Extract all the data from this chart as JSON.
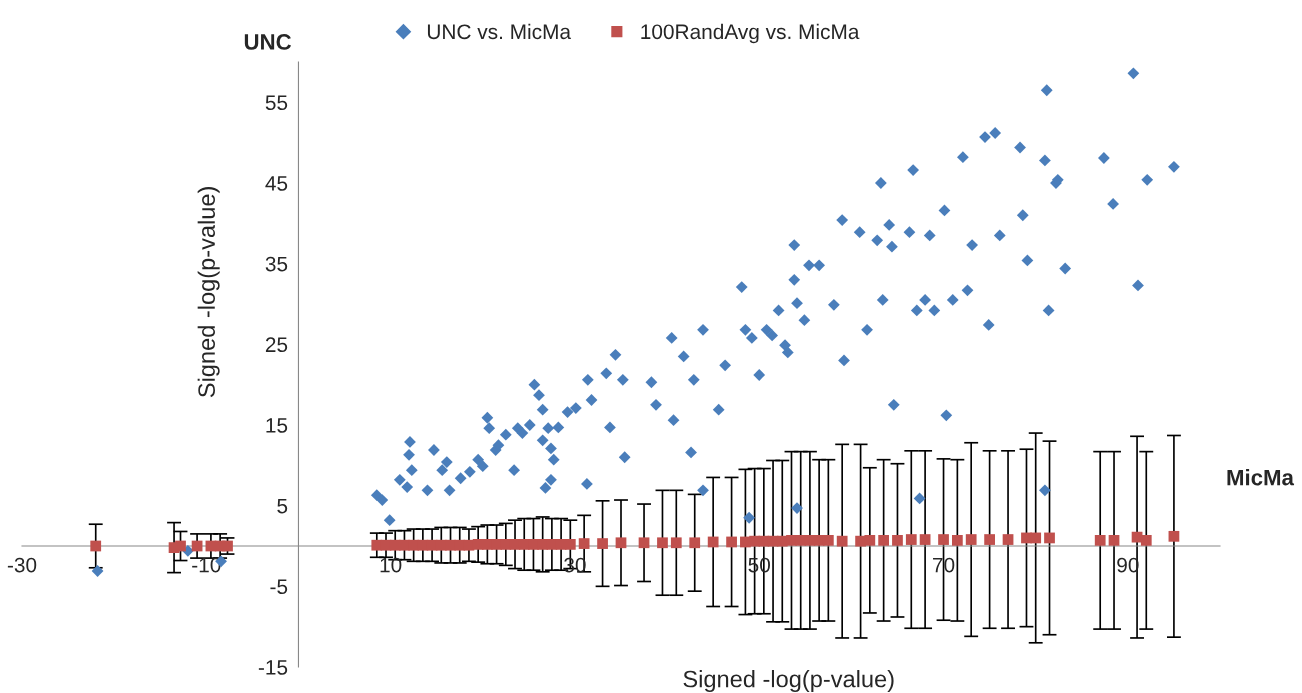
{
  "chart_data": {
    "type": "scatter",
    "xlabel": "Signed -log(p-value)",
    "ylabel": "Signed -log(p-value)",
    "annotations": [
      "UNC",
      "MicMa"
    ],
    "xlim": [
      -30,
      100
    ],
    "ylim": [
      -15,
      60
    ],
    "xticks": [
      -30,
      -10,
      10,
      30,
      50,
      70,
      90
    ],
    "yticks": [
      -15,
      -5,
      5,
      15,
      25,
      35,
      45,
      55
    ],
    "grid": false,
    "legend": "top",
    "series": [
      {
        "name": "UNC vs. MicMa",
        "marker": "diamond",
        "color": "#4a7ebb",
        "x": [
          -21.8,
          -12,
          -8.4,
          8.5,
          9.1,
          9.9,
          11.0,
          11.8,
          12.0,
          12.1,
          12.3,
          14.0,
          14.7,
          15.6,
          16.1,
          16.4,
          17.6,
          18.6,
          19.5,
          20.0,
          20.5,
          20.7,
          21.4,
          21.7,
          22.5,
          23.4,
          23.8,
          24.3,
          25.1,
          25.6,
          26.1,
          26.5,
          26.5,
          26.8,
          27.1,
          27.4,
          27.4,
          27.7,
          28.2,
          29.2,
          30.1,
          31.3,
          31.4,
          31.8,
          33.4,
          33.8,
          34.4,
          35.2,
          35.4,
          38.3,
          38.8,
          40.5,
          40.7,
          41.8,
          42.6,
          42.9,
          43.9,
          43.9,
          45.6,
          46.3,
          48.1,
          48.5,
          48.9,
          49.2,
          50.0,
          50.8,
          51.4,
          52.1,
          52.8,
          53.1,
          53.8,
          53.8,
          54.1,
          54.1,
          54.9,
          55.4,
          56.5,
          58.1,
          59.0,
          59.2,
          60.9,
          61.7,
          62.8,
          63.2,
          63.4,
          64.1,
          64.4,
          64.6,
          66.3,
          66.7,
          67.1,
          67.4,
          68.0,
          68.5,
          69.0,
          70.1,
          70.3,
          71.0,
          72.1,
          72.6,
          73.1,
          74.5,
          74.9,
          75.6,
          76.1,
          78.3,
          78.6,
          79.1,
          81.0,
          81.0,
          81.2,
          81.4,
          82.2,
          82.4,
          83.2,
          87.4,
          88.4,
          90.6,
          91.1,
          92.1,
          95.0
        ],
        "values": [
          -3.1,
          -0.6,
          -1.9,
          6.3,
          5.7,
          3.2,
          8.2,
          7.3,
          11.3,
          12.9,
          9.4,
          6.9,
          11.9,
          9.4,
          10.4,
          6.9,
          8.4,
          9.2,
          10.7,
          9.9,
          15.9,
          14.6,
          11.9,
          12.5,
          13.8,
          9.4,
          14.6,
          14.0,
          15.0,
          20.0,
          18.7,
          16.9,
          13.1,
          7.2,
          14.6,
          12.1,
          8.2,
          10.7,
          14.7,
          16.6,
          17.1,
          7.7,
          20.6,
          18.1,
          21.4,
          14.7,
          23.7,
          20.6,
          11.0,
          20.3,
          17.5,
          25.8,
          15.6,
          23.5,
          11.6,
          20.6,
          26.8,
          6.9,
          16.9,
          22.4,
          32.1,
          26.8,
          3.5,
          25.8,
          21.2,
          26.8,
          26.1,
          29.2,
          24.9,
          24.0,
          37.3,
          33.0,
          30.1,
          4.7,
          28.0,
          34.8,
          34.8,
          29.9,
          40.4,
          23.0,
          38.9,
          26.8,
          37.9,
          45.0,
          30.5,
          39.8,
          37.1,
          17.5,
          38.9,
          46.6,
          29.2,
          5.9,
          30.5,
          38.5,
          29.2,
          41.6,
          16.2,
          30.5,
          48.2,
          31.7,
          37.3,
          50.7,
          27.4,
          51.2,
          38.5,
          49.4,
          41.0,
          35.4,
          47.8,
          6.9,
          56.5,
          29.2,
          45.0,
          45.4,
          34.4,
          48.1,
          42.4,
          58.6,
          32.3,
          45.4,
          47.0
        ]
      },
      {
        "name": "100RandAvg vs. MicMa",
        "marker": "square",
        "color": "#c0504d",
        "x": [
          -22,
          -13.5,
          -12.8,
          -11,
          -9.5,
          -8.5,
          -7.7,
          8.5,
          9.5,
          10.5,
          11.5,
          12.5,
          13.5,
          14.5,
          15.5,
          16.5,
          17.5,
          18.5,
          19.5,
          20.5,
          21.5,
          22.5,
          23.5,
          24.5,
          25.5,
          26.5,
          27.5,
          28.5,
          29.5,
          31,
          33,
          35,
          37.5,
          39.5,
          41,
          43,
          45,
          47,
          48.5,
          49.5,
          50.5,
          51.5,
          52.5,
          53.5,
          54.5,
          55.5,
          56.5,
          57.5,
          59,
          61,
          62,
          63.5,
          65,
          66.5,
          68,
          70,
          71.5,
          73,
          75,
          77,
          79,
          80,
          81.5,
          87,
          88.5,
          91,
          92,
          95
        ],
        "values": [
          0,
          -0.2,
          0,
          0,
          0,
          0,
          0,
          0.1,
          0.1,
          0.1,
          0.1,
          0.1,
          0.1,
          0.1,
          0.1,
          0.1,
          0.1,
          0.1,
          0.2,
          0.2,
          0.2,
          0.2,
          0.2,
          0.2,
          0.2,
          0.2,
          0.2,
          0.2,
          0.2,
          0.3,
          0.3,
          0.4,
          0.4,
          0.4,
          0.4,
          0.4,
          0.5,
          0.5,
          0.5,
          0.6,
          0.6,
          0.6,
          0.6,
          0.7,
          0.7,
          0.7,
          0.7,
          0.7,
          0.6,
          0.6,
          0.7,
          0.7,
          0.7,
          0.8,
          0.8,
          0.8,
          0.7,
          0.8,
          0.8,
          0.8,
          1.0,
          1.0,
          1.0,
          0.7,
          0.7,
          1.1,
          0.7,
          1.2
        ],
        "errors": [
          2.7,
          3.1,
          1.8,
          1.5,
          1.5,
          1.5,
          1.0,
          1.5,
          1.5,
          1.8,
          1.8,
          2.0,
          2.0,
          2.0,
          2.2,
          2.2,
          2.2,
          2.0,
          2.2,
          2.4,
          2.4,
          2.6,
          3.0,
          3.2,
          3.2,
          3.4,
          3.2,
          3.2,
          3.0,
          3.5,
          5.3,
          5.3,
          4.8,
          6.5,
          6.5,
          6.0,
          8.0,
          8.0,
          9.0,
          9.0,
          9.0,
          10.0,
          10.0,
          11.0,
          11.0,
          11.0,
          10.0,
          10.0,
          12.0,
          12.0,
          9.0,
          10.0,
          9.5,
          11.0,
          11.0,
          10.0,
          10.0,
          12.0,
          11.0,
          11.0,
          11.0,
          13.0,
          12.0,
          11.0,
          11.0,
          12.5,
          11.0,
          12.5
        ]
      }
    ]
  }
}
